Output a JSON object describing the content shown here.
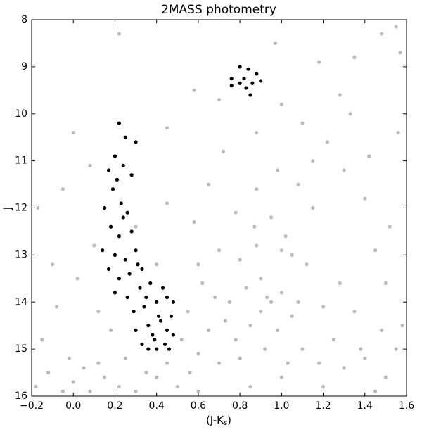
{
  "chart_data": {
    "type": "scatter",
    "title": "2MASS photometry",
    "ylabel": "J",
    "xlabel_parts": [
      "(J-K",
      "s",
      ")"
    ],
    "xlim": [
      -0.2,
      1.6
    ],
    "xticks": [
      {
        "value": -0.2,
        "label": "−0.2"
      },
      {
        "value": 0,
        "label": "0.0"
      },
      0.2,
      0.4,
      0.6,
      0.8,
      {
        "value": 1,
        "label": "1.0"
      },
      1.2,
      1.4,
      1.6
    ],
    "ylim": [
      16,
      8
    ],
    "yticks": [
      8,
      9,
      10,
      11,
      12,
      13,
      14,
      15,
      16
    ],
    "series": [
      {
        "color": "#bbbbbb",
        "x": [
          0.95,
          0.9,
          1.0,
          0.85,
          1.05,
          0.92,
          0.8,
          1.1,
          0.7,
          0.6,
          0.65,
          0.75,
          0.88,
          0.95,
          1.02,
          0.8,
          1.12,
          1.2,
          1.25,
          1.3,
          1.4,
          1.5,
          1.55,
          1.35,
          1.15,
          1.08,
          0.98,
          0.88,
          0.78,
          0.7,
          0.62,
          0.55,
          0.52,
          0.45,
          0.35,
          0.25,
          0.18,
          0.12,
          0.05,
          0.0,
          -0.05,
          -0.12,
          -0.18,
          0.08,
          0.15,
          0.3,
          0.5,
          0.6,
          0.85,
          1.0,
          1.2,
          1.45,
          1.58,
          1.5,
          1.45,
          1.4,
          1.3,
          1.22,
          1.1,
          1.0,
          1.28,
          1.35,
          1.48,
          1.57,
          1.55,
          1.18,
          0.97,
          0.88,
          0.72,
          0.65,
          0.58,
          0.45,
          0.4,
          0.3,
          0.1,
          0.02,
          -0.08,
          -0.15,
          -0.1,
          -0.17,
          -0.05,
          0.0,
          0.08,
          0.22,
          0.58,
          0.7,
          0.45,
          1.05,
          0.93,
          0.83,
          0.98,
          1.08,
          0.78,
          0.68,
          1.18,
          1.03,
          0.9,
          0.87,
          1.0,
          0.73,
          1.28,
          1.38,
          1.48,
          1.52,
          1.42,
          1.33,
          1.56,
          1.15,
          0.6,
          0.56,
          0.4,
          0.22,
          -0.02,
          0.12
        ],
        "values": [
          14.0,
          13.5,
          13.8,
          14.5,
          14.3,
          15.0,
          15.2,
          15.0,
          15.3,
          15.1,
          14.6,
          14.0,
          12.8,
          12.2,
          12.6,
          13.1,
          13.2,
          14.1,
          14.8,
          15.4,
          15.2,
          15.6,
          15.0,
          14.2,
          12.0,
          11.5,
          11.2,
          11.6,
          12.1,
          12.9,
          13.6,
          14.2,
          14.8,
          15.3,
          15.5,
          15.2,
          14.6,
          14.2,
          15.4,
          15.7,
          15.9,
          15.5,
          15.8,
          15.9,
          15.6,
          15.9,
          15.8,
          15.9,
          15.8,
          15.6,
          15.8,
          15.9,
          14.5,
          13.6,
          12.9,
          11.8,
          11.2,
          10.6,
          10.2,
          9.8,
          9.6,
          8.8,
          8.3,
          8.7,
          8.15,
          8.9,
          8.5,
          10.4,
          10.8,
          11.5,
          12.3,
          11.9,
          13.2,
          12.4,
          12.8,
          13.5,
          14.1,
          14.8,
          13.2,
          12.0,
          11.6,
          10.4,
          11.1,
          8.3,
          9.5,
          9.7,
          10.3,
          13.0,
          13.9,
          13.7,
          14.6,
          14.0,
          14.8,
          13.9,
          15.3,
          15.3,
          14.2,
          12.4,
          12.9,
          14.4,
          13.6,
          15.0,
          14.6,
          12.4,
          10.9,
          10.0,
          10.4,
          11.0,
          13.2,
          15.5,
          15.6,
          15.8,
          15.2,
          15.3
        ]
      },
      {
        "color": "#000000",
        "x": [
          0.22,
          0.25,
          0.3,
          0.2,
          0.17,
          0.24,
          0.19,
          0.23,
          0.26,
          0.15,
          0.18,
          0.22,
          0.28,
          0.14,
          0.2,
          0.25,
          0.3,
          0.17,
          0.22,
          0.27,
          0.33,
          0.2,
          0.26,
          0.32,
          0.37,
          0.29,
          0.34,
          0.4,
          0.45,
          0.3,
          0.36,
          0.42,
          0.47,
          0.33,
          0.39,
          0.44,
          0.48,
          0.4,
          0.46,
          0.36,
          0.48,
          0.43,
          0.35,
          0.38,
          0.45,
          0.41,
          0.31,
          0.24,
          0.21,
          0.28,
          0.8,
          0.84,
          0.88,
          0.82,
          0.86,
          0.9,
          0.76,
          0.76,
          0.83,
          0.85,
          0.8
        ],
        "values": [
          10.2,
          10.5,
          10.6,
          10.9,
          11.2,
          11.1,
          11.6,
          11.9,
          12.1,
          12.0,
          12.4,
          12.6,
          12.5,
          12.9,
          13.0,
          13.1,
          12.9,
          13.3,
          13.5,
          13.4,
          13.3,
          13.8,
          13.9,
          13.7,
          13.6,
          14.2,
          14.1,
          14.0,
          13.9,
          14.6,
          14.5,
          14.4,
          14.3,
          14.9,
          14.8,
          14.9,
          14.7,
          15.0,
          15.0,
          15.0,
          14.0,
          13.7,
          13.9,
          14.7,
          14.6,
          14.3,
          13.2,
          12.2,
          11.4,
          11.3,
          9.0,
          9.05,
          9.15,
          9.25,
          9.35,
          9.3,
          9.25,
          9.4,
          9.45,
          9.6,
          9.35
        ]
      }
    ]
  }
}
